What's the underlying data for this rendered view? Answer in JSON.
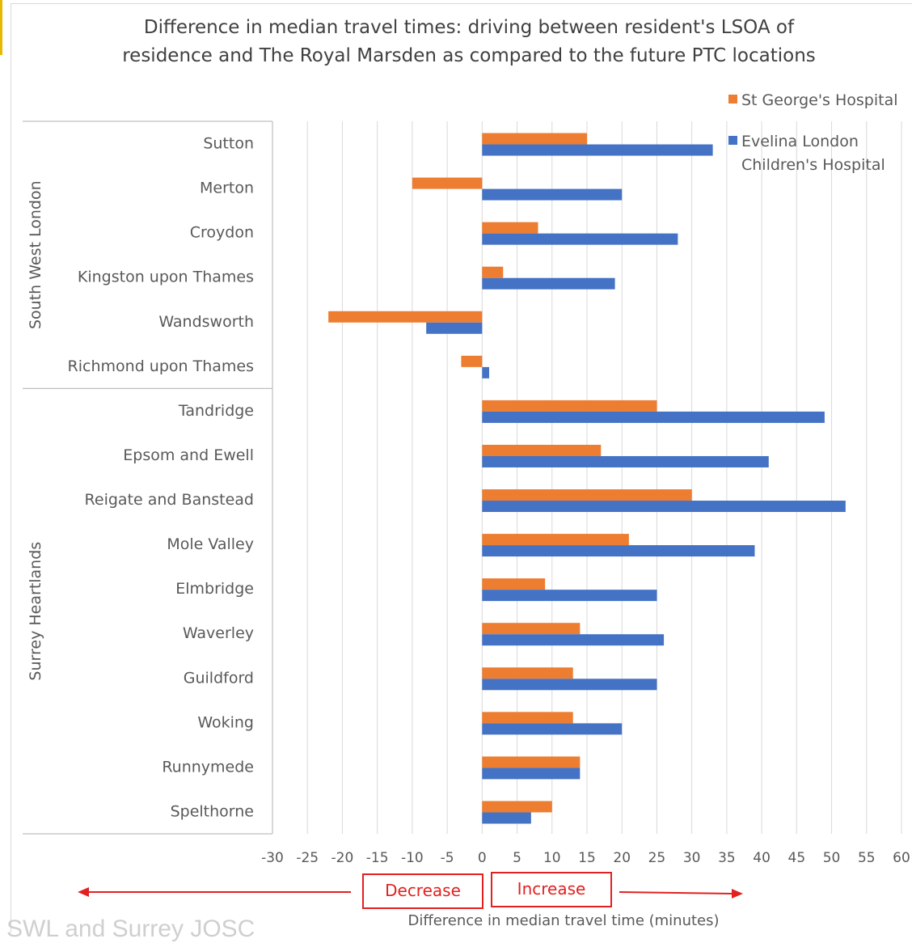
{
  "title_line1": "Difference in median travel times: driving between resident's LSOA of",
  "title_line2": "residence and The Royal Marsden as compared to the future PTC locations",
  "footer_text": "SWL and Surrey JOSC",
  "annotations": {
    "decrease": "Decrease",
    "increase": "Increase"
  },
  "colors": {
    "st_georges": "#ed7d31",
    "evelina": "#4472c4",
    "arrow": "#e32020",
    "grid": "#d9d9d9"
  },
  "chart_data": {
    "type": "bar",
    "orientation": "horizontal",
    "title": "Difference in median travel times: driving between resident's LSOA of residence and The Royal Marsden as compared to the future PTC locations",
    "xlabel": "Difference in median travel time (minutes)",
    "ylabel": "",
    "xlim": [
      -30,
      60
    ],
    "x_ticks": [
      -30,
      -25,
      -20,
      -15,
      -10,
      -5,
      0,
      5,
      10,
      15,
      20,
      25,
      30,
      35,
      40,
      45,
      50,
      55,
      60
    ],
    "grid": true,
    "legend_position": "top-right",
    "groups": [
      {
        "name": "South West London",
        "categories": [
          "Sutton",
          "Merton",
          "Croydon",
          "Kingston upon Thames",
          "Wandsworth",
          "Richmond upon Thames"
        ]
      },
      {
        "name": "Surrey Heartlands",
        "categories": [
          "Tandridge",
          "Epsom and Ewell",
          "Reigate and Banstead",
          "Mole Valley",
          "Elmbridge",
          "Waverley",
          "Guildford",
          "Woking",
          "Runnymede",
          "Spelthorne"
        ]
      }
    ],
    "categories": [
      "Sutton",
      "Merton",
      "Croydon",
      "Kingston upon Thames",
      "Wandsworth",
      "Richmond upon Thames",
      "Tandridge",
      "Epsom and Ewell",
      "Reigate and Banstead",
      "Mole Valley",
      "Elmbridge",
      "Waverley",
      "Guildford",
      "Woking",
      "Runnymede",
      "Spelthorne"
    ],
    "series": [
      {
        "name": "St George's Hospital",
        "color": "#ed7d31",
        "values": [
          15,
          -10,
          8,
          3,
          -22,
          -3,
          25,
          17,
          30,
          21,
          9,
          14,
          13,
          13,
          14,
          10
        ]
      },
      {
        "name": "Evelina London Children's Hospital",
        "color": "#4472c4",
        "values": [
          33,
          20,
          28,
          19,
          -8,
          1,
          49,
          41,
          52,
          39,
          25,
          26,
          25,
          20,
          14,
          7
        ]
      }
    ]
  }
}
